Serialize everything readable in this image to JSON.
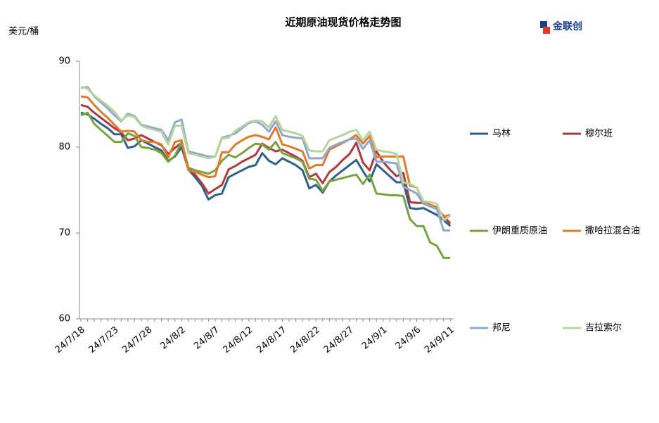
{
  "chart_data": {
    "type": "line",
    "title": "近期原油现货价格走势图",
    "y_label": "美元/桶",
    "logo": "金联创",
    "categories": [
      "24/7/18",
      null,
      null,
      null,
      null,
      "24/7/23",
      null,
      null,
      null,
      null,
      "24/7/28",
      null,
      null,
      null,
      null,
      "24/8/2",
      null,
      null,
      null,
      null,
      "24/8/7",
      null,
      null,
      null,
      null,
      "24/8/12",
      null,
      null,
      null,
      null,
      "24/8/17",
      null,
      null,
      null,
      null,
      "24/8/22",
      null,
      null,
      null,
      null,
      "24/8/27",
      null,
      null,
      null,
      null,
      "24/9/1",
      null,
      null,
      null,
      null,
      "24/9/6",
      null,
      null,
      null,
      null,
      "24/9/11"
    ],
    "ylim": [
      60,
      90
    ],
    "yticks": [
      60,
      70,
      80,
      90
    ],
    "series": [
      {
        "name": "马林",
        "color": "#2f5f91",
        "values": [
          84,
          83.8,
          83.3,
          82.7,
          82.2,
          81.5,
          81.5,
          79.9,
          80.1,
          80.8,
          80.4,
          80.0,
          79.6,
          78.4,
          78.9,
          80.0,
          77.4,
          76.5,
          75.5,
          73.9,
          74.4,
          74.6,
          76.5,
          76.9,
          77.3,
          77.7,
          77.9,
          79.3,
          78.4,
          78.0,
          78.7,
          78.3,
          77.9,
          77.3,
          75.2,
          75.6,
          74.7,
          76.0,
          76.7,
          77.3,
          77.9,
          78.5,
          77.2,
          76.0,
          78.0,
          77.3,
          76.6,
          75.9,
          75.9,
          72.9,
          72.8,
          72.9,
          72.5,
          72.1,
          71.5,
          70.8
        ]
      },
      {
        "name": "穆尔班",
        "color": "#b03a3a",
        "values": [
          84.9,
          84.7,
          84.0,
          83.4,
          82.8,
          82.2,
          81.7,
          80.8,
          81.0,
          81.4,
          81.0,
          80.6,
          80.2,
          79.2,
          79.9,
          80.5,
          77.6,
          76.8,
          75.8,
          74.6,
          75.1,
          75.6,
          77.4,
          77.8,
          78.3,
          78.7,
          79.1,
          80.4,
          79.9,
          79.5,
          79.7,
          79.3,
          78.9,
          78.4,
          76.5,
          76.9,
          75.8,
          77.1,
          77.7,
          78.5,
          79.2,
          80.5,
          78.2,
          77.3,
          79.5,
          78.3,
          77.4,
          76.6,
          77.0,
          73.6,
          73.5,
          73.5,
          73.1,
          72.8,
          72.0,
          71.1
        ]
      },
      {
        "name": "伊朗重质原油",
        "color": "#77a33e",
        "values": [
          83.7,
          84.0,
          82.7,
          82.0,
          81.3,
          80.6,
          80.6,
          81.6,
          81.3,
          80.0,
          79.9,
          79.7,
          79.3,
          78.3,
          79.0,
          80.6,
          77.6,
          77.3,
          77.1,
          76.9,
          77.3,
          78.4,
          79.1,
          78.8,
          79.3,
          79.9,
          80.4,
          80.3,
          79.7,
          80.6,
          79.3,
          79.0,
          78.7,
          78.3,
          76.3,
          76.2,
          74.9,
          76.0,
          76.2,
          76.4,
          76.6,
          76.8,
          75.7,
          76.8,
          74.6,
          74.5,
          74.4,
          74.4,
          74.3,
          71.6,
          70.8,
          70.8,
          68.9,
          68.5,
          67.1,
          67.1
        ]
      },
      {
        "name": "撒哈拉混合油",
        "color": "#e07b2b",
        "values": [
          85.9,
          85.8,
          84.9,
          84.1,
          83.4,
          82.6,
          81.8,
          81.9,
          81.8,
          80.8,
          80.6,
          80.6,
          80.3,
          78.8,
          80.6,
          80.8,
          77.3,
          77.1,
          76.8,
          76.5,
          76.6,
          79.4,
          79.4,
          80.3,
          80.8,
          81.2,
          81.4,
          81.2,
          80.9,
          82.3,
          80.3,
          80.1,
          79.8,
          79.5,
          77.5,
          77.9,
          77.9,
          79.7,
          80.1,
          80.5,
          80.9,
          81.4,
          80.4,
          81.3,
          78.8,
          78.9,
          78.9,
          78.9,
          78.9,
          75.5,
          75.3,
          73.6,
          73.3,
          73.0,
          71.9,
          72.1
        ]
      },
      {
        "name": "邦尼",
        "color": "#8fa8cf",
        "values": [
          86.9,
          87.0,
          85.9,
          85.2,
          84.5,
          83.7,
          83.0,
          83.9,
          83.6,
          82.6,
          82.4,
          82.2,
          82.0,
          80.8,
          82.9,
          83.2,
          79.5,
          79.3,
          79.1,
          78.9,
          78.9,
          81.1,
          81.3,
          81.6,
          82.2,
          82.8,
          83.0,
          82.6,
          81.8,
          83.0,
          81.4,
          81.2,
          81.1,
          81.0,
          78.7,
          78.7,
          78.7,
          79.9,
          80.3,
          80.6,
          80.9,
          81.0,
          79.8,
          80.8,
          78.3,
          78.3,
          78.2,
          78.1,
          75.4,
          75.0,
          74.6,
          73.4,
          73.1,
          72.8,
          70.3,
          70.3
        ]
      },
      {
        "name": "吉拉索尔",
        "color": "#b7d49a",
        "values": [
          87.0,
          86.8,
          86.0,
          85.4,
          84.8,
          84.1,
          83.1,
          83.7,
          83.5,
          82.5,
          82.2,
          82.0,
          81.8,
          80.3,
          82.5,
          82.5,
          79.3,
          79.1,
          78.9,
          78.7,
          78.9,
          81.0,
          81.1,
          81.9,
          82.4,
          82.9,
          83.1,
          83.0,
          82.3,
          83.6,
          82.0,
          81.8,
          81.6,
          81.3,
          79.6,
          79.5,
          79.5,
          80.8,
          81.1,
          81.4,
          81.8,
          82.0,
          80.8,
          81.8,
          79.7,
          79.5,
          79.4,
          79.2,
          75.9,
          75.7,
          75.3,
          73.7,
          73.6,
          73.4,
          71.5,
          72.0
        ]
      }
    ]
  }
}
